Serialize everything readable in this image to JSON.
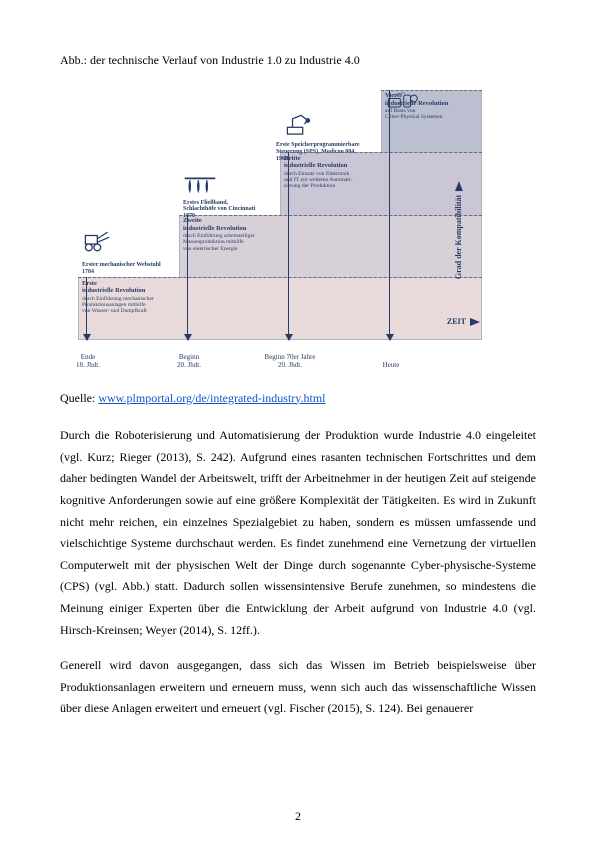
{
  "caption": "Abb.: der technische Verlauf von Industrie 1.0 zu Industrie 4.0",
  "source_label": "Quelle: ",
  "source_link_text": "www.plmportal.org/de/integrated-industry.html",
  "paragraph1": "Durch die Roboterisierung und Automatisierung der Produktion wurde Industrie 4.0 eingeleitet (vgl. Kurz; Rieger (2013), S. 242). Aufgrund eines rasanten technischen Fortschrittes und dem daher bedingten Wandel der Arbeitswelt, trifft der Arbeitnehmer in der heutigen Zeit auf steigende kognitive Anforderungen sowie auf eine größere Komplexität der Tätigkeiten. Es wird in Zukunft nicht mehr reichen, ein einzelnes Spezialgebiet zu haben, sondern es müssen umfassende und vielschichtige Systeme durchschaut werden. Es findet zunehmend eine Vernetzung der virtuellen Computerwelt mit der physischen Welt der Dinge durch sogenannte Cyber-physische-Systeme (CPS) (vgl. Abb.) statt. Dadurch sollen wissensintensive Berufe zunehmen, so mindestens die Meinung einiger Experten über die Entwicklung der Arbeit aufgrund von Industrie 4.0 (vgl. Hirsch-Kreinsen; Weyer (2014), S. 12ff.).",
  "paragraph2": "Generell wird davon ausgegangen, dass sich das Wissen im Betrieb beispielsweise über Produktionsanlagen erweitern und erneuern muss, wenn sich auch das wissenschaftliche Wissen über diese Anlagen erweitert und erneuert (vgl. Fischer (2015), S. 124). Bei genauerer",
  "page_number": "2",
  "figure": {
    "background_color": "#ffffff",
    "xaxis_label": "ZEIT",
    "yaxis_label": "Grad der Kompatibilität",
    "arrow_color": "#273a63",
    "title_color": "#273a63",
    "revolutions": [
      {
        "event": "Erster mechanischer Webstuhl\n1784",
        "title": "Erste\nindustrielle Revolution",
        "desc": "durch Einführung mechanischer\nProduktionsanlagen mithilfe\nvon Wasser- und Dampfkraft",
        "tick": "Ende\n18. Jhdt.",
        "fill": "#e8d9db",
        "left_pct": 0,
        "height_pct": 25
      },
      {
        "event": "Erstes Fließband,\nSchlachthöfe von Cincinnati\n1870",
        "title": "Zweite\nindustrielle Revolution",
        "desc": "durch Einführung arbeitsteiliger\nMassenproduktion mithilfe\nvon elektrischer Energie",
        "tick": "Beginn\n20. Jhdt.",
        "fill": "#d8d0d9",
        "left_pct": 25,
        "height_pct": 50
      },
      {
        "event": "Erste Speicherprogrammierbare\nSteuerung (SPS), Modicon 084\n1969",
        "title": "Dritte\nindustrielle Revolution",
        "desc": "durch Einsatz von Elektronik\nund IT zur weiteren Automati-\nsierung der Produktion",
        "tick": "Beginn 70er Jahre\n20. Jhdt.",
        "fill": "#cac6d5",
        "left_pct": 50,
        "height_pct": 75
      },
      {
        "event": "",
        "title": "Vierte\nindustrielle Revolution",
        "desc": "auf Basis von\nCyber-Physical Systemen",
        "tick": "Heute",
        "fill": "#bbbfd0",
        "left_pct": 75,
        "height_pct": 100
      }
    ]
  }
}
